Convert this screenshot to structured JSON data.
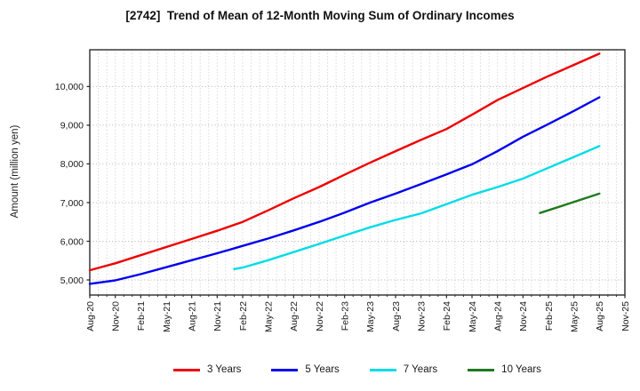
{
  "title": "[2742]  Trend of Mean of 12-Month Moving Sum of Ordinary Incomes",
  "chart_data": {
    "type": "line",
    "title": "[2742]  Trend of Mean of 12-Month Moving Sum of Ordinary Incomes",
    "xlabel": "",
    "ylabel": "Amount (million yen)",
    "grid": "dotted gray; vertical gridline every month, horizontal gridline every 1000",
    "legend_position": "bottom-horizontal",
    "x_unit": "months since Aug-2020",
    "months_total": 63,
    "x_tick_positions": [
      0,
      3,
      6,
      9,
      12,
      15,
      18,
      21,
      24,
      27,
      30,
      33,
      36,
      39,
      42,
      45,
      48,
      51,
      54,
      57,
      60,
      63
    ],
    "x_tick_labels": [
      "Aug-20",
      "Nov-20",
      "Feb-21",
      "May-21",
      "Aug-21",
      "Nov-21",
      "Feb-22",
      "May-22",
      "Aug-22",
      "Nov-22",
      "Feb-23",
      "May-23",
      "Aug-23",
      "Nov-23",
      "Feb-24",
      "May-24",
      "Aug-24",
      "Nov-24",
      "Feb-25",
      "May-25",
      "Aug-25",
      "Nov-25"
    ],
    "ylim": [
      4610,
      10950
    ],
    "y_ticks": [
      5000,
      6000,
      7000,
      8000,
      9000,
      10000
    ],
    "y_tick_labels": [
      "5,000",
      "6,000",
      "7,000",
      "8,000",
      "9,000",
      "10,000"
    ],
    "series": [
      {
        "name": "3 Years",
        "color": "#ee0000",
        "x": [
          0,
          3,
          6,
          9,
          12,
          15,
          18,
          21,
          24,
          27,
          30,
          33,
          36,
          39,
          42,
          45,
          48,
          51,
          54,
          57,
          60
        ],
        "values": [
          5250,
          5430,
          5640,
          5850,
          6060,
          6270,
          6500,
          6800,
          7110,
          7400,
          7720,
          8030,
          8330,
          8620,
          8900,
          9270,
          9650,
          9960,
          10270,
          10560,
          10850
        ]
      },
      {
        "name": "5 Years",
        "color": "#0000ee",
        "x": [
          0,
          3,
          6,
          9,
          12,
          15,
          18,
          21,
          24,
          27,
          30,
          33,
          36,
          39,
          42,
          45,
          48,
          51,
          54,
          57,
          60
        ],
        "values": [
          4900,
          4990,
          5150,
          5330,
          5510,
          5690,
          5880,
          6070,
          6280,
          6500,
          6740,
          7000,
          7230,
          7480,
          7730,
          7990,
          8330,
          8700,
          9030,
          9370,
          9720
        ]
      },
      {
        "name": "7 Years",
        "color": "#00dde6",
        "x": [
          17,
          18,
          21,
          24,
          27,
          30,
          33,
          36,
          39,
          42,
          45,
          48,
          51,
          54,
          57,
          60
        ],
        "values": [
          5280,
          5320,
          5510,
          5720,
          5930,
          6150,
          6360,
          6550,
          6720,
          6960,
          7200,
          7400,
          7620,
          7900,
          8180,
          8460
        ]
      },
      {
        "name": "10 Years",
        "color": "#1f7a1f",
        "x": [
          53,
          56,
          60
        ],
        "values": [
          6730,
          6945,
          7230
        ]
      }
    ]
  }
}
